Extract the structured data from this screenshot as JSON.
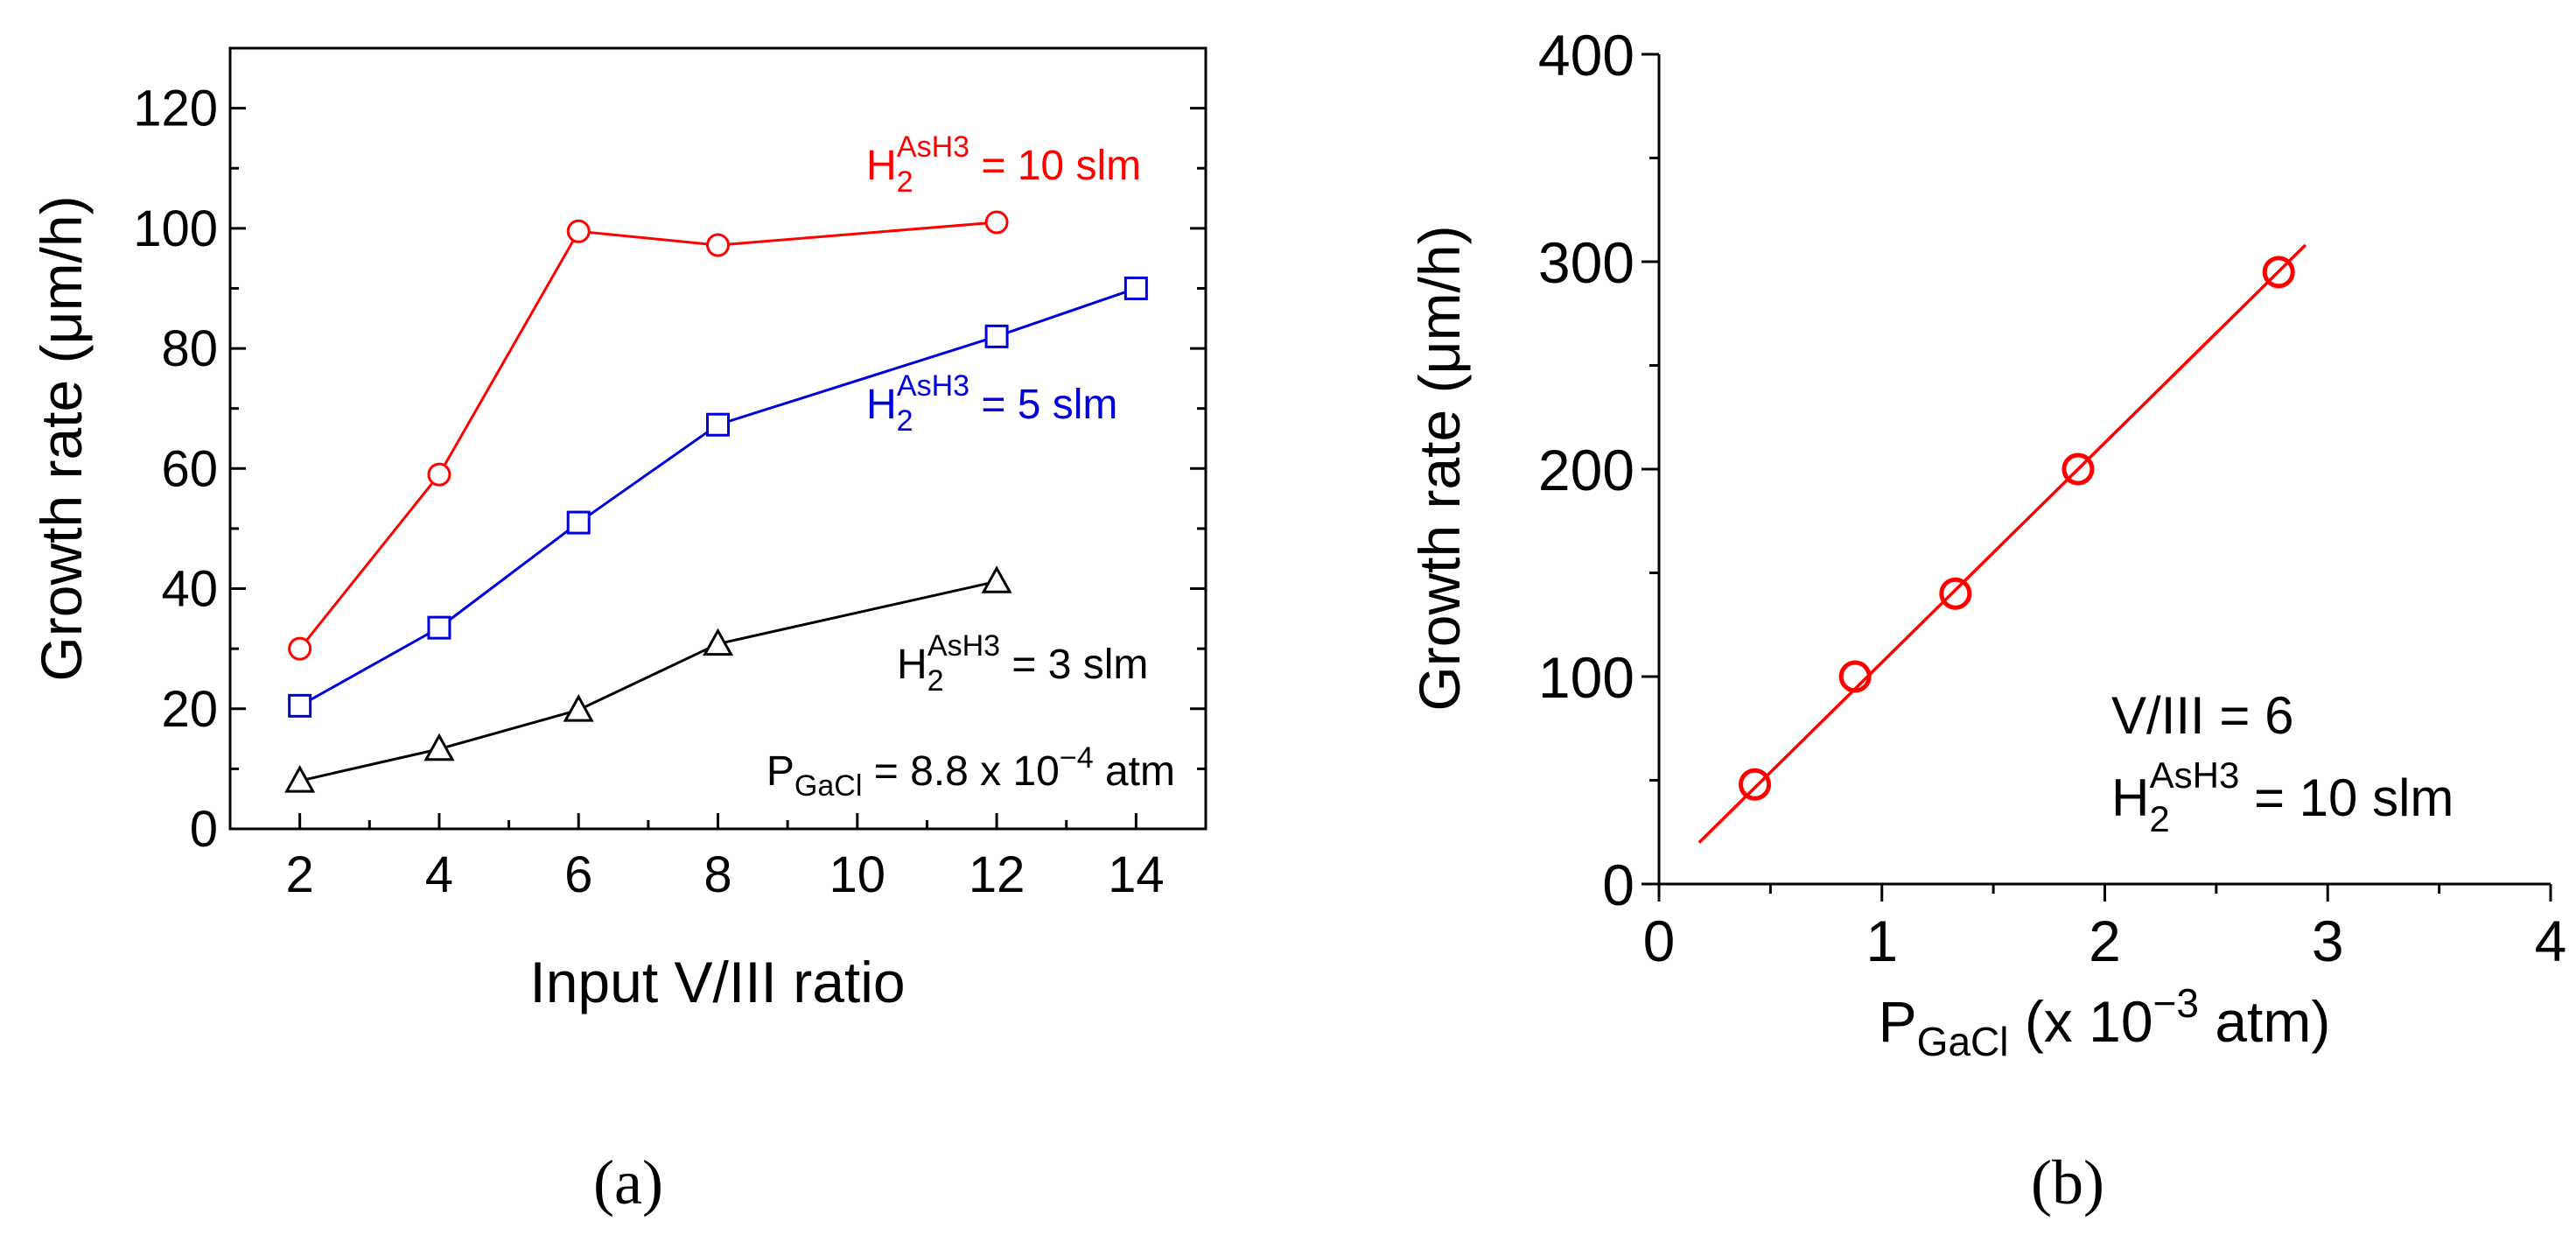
{
  "chart_data": [
    {
      "panel_label": "(a)",
      "type": "line",
      "xlabel": "Input V/III ratio",
      "ylabel": "Growth rate (μm/h)",
      "xlim": [
        1,
        15
      ],
      "ylim": [
        0,
        130
      ],
      "x_ticks": [
        2,
        4,
        6,
        8,
        10,
        12,
        14
      ],
      "y_ticks": [
        0,
        20,
        40,
        60,
        80,
        100,
        120
      ],
      "series": [
        {
          "base": "H",
          "sub": "2",
          "sup": "AsH3",
          "rest": " = 10 slm",
          "color": "#ff0000",
          "marker": "circle",
          "x": [
            2,
            4,
            6,
            8,
            12
          ],
          "values": [
            30,
            59,
            99.5,
            97.2,
            101
          ]
        },
        {
          "base": "H",
          "sub": "2",
          "sup": "AsH3",
          "rest": " = 5 slm",
          "color": "#0000dd",
          "marker": "square",
          "x": [
            2,
            4,
            6,
            8,
            12,
            14
          ],
          "values": [
            20.5,
            33.5,
            51,
            67.3,
            82,
            90
          ]
        },
        {
          "base": "H",
          "sub": "2",
          "sup": "AsH3",
          "rest": " = 3 slm",
          "color": "#000000",
          "marker": "triangle",
          "x": [
            2,
            4,
            6,
            8,
            12
          ],
          "values": [
            8,
            13.3,
            19.8,
            30.8,
            41.2
          ]
        }
      ],
      "annotation": {
        "pre": "P",
        "sub": "GaCl",
        "mid": " = 8.8 x 10",
        "sup": "−4",
        "post": " atm"
      }
    },
    {
      "panel_label": "(b)",
      "type": "scatter",
      "xlabel": {
        "pre": "P",
        "sub": "GaCl",
        "mid": " (x 10",
        "sup": "−3",
        "post": " atm)"
      },
      "ylabel": "Growth rate (μm/h)",
      "xlim": [
        0,
        4
      ],
      "ylim": [
        0,
        400
      ],
      "x_ticks": [
        0,
        1,
        2,
        3,
        4
      ],
      "y_ticks": [
        0,
        100,
        200,
        300,
        400
      ],
      "color": "#ff0000",
      "points": {
        "x": [
          0.43,
          0.88,
          1.33,
          1.88,
          2.78
        ],
        "y": [
          48,
          100,
          140,
          200,
          295
        ]
      },
      "fit_line": {
        "x": [
          0.18,
          2.9
        ],
        "y": [
          20,
          308
        ]
      },
      "annotation_lines": [
        {
          "text": "V/III = 6"
        },
        {
          "base": "H",
          "sub": "2",
          "sup": "AsH3",
          "rest": " = 10 slm"
        }
      ]
    }
  ]
}
